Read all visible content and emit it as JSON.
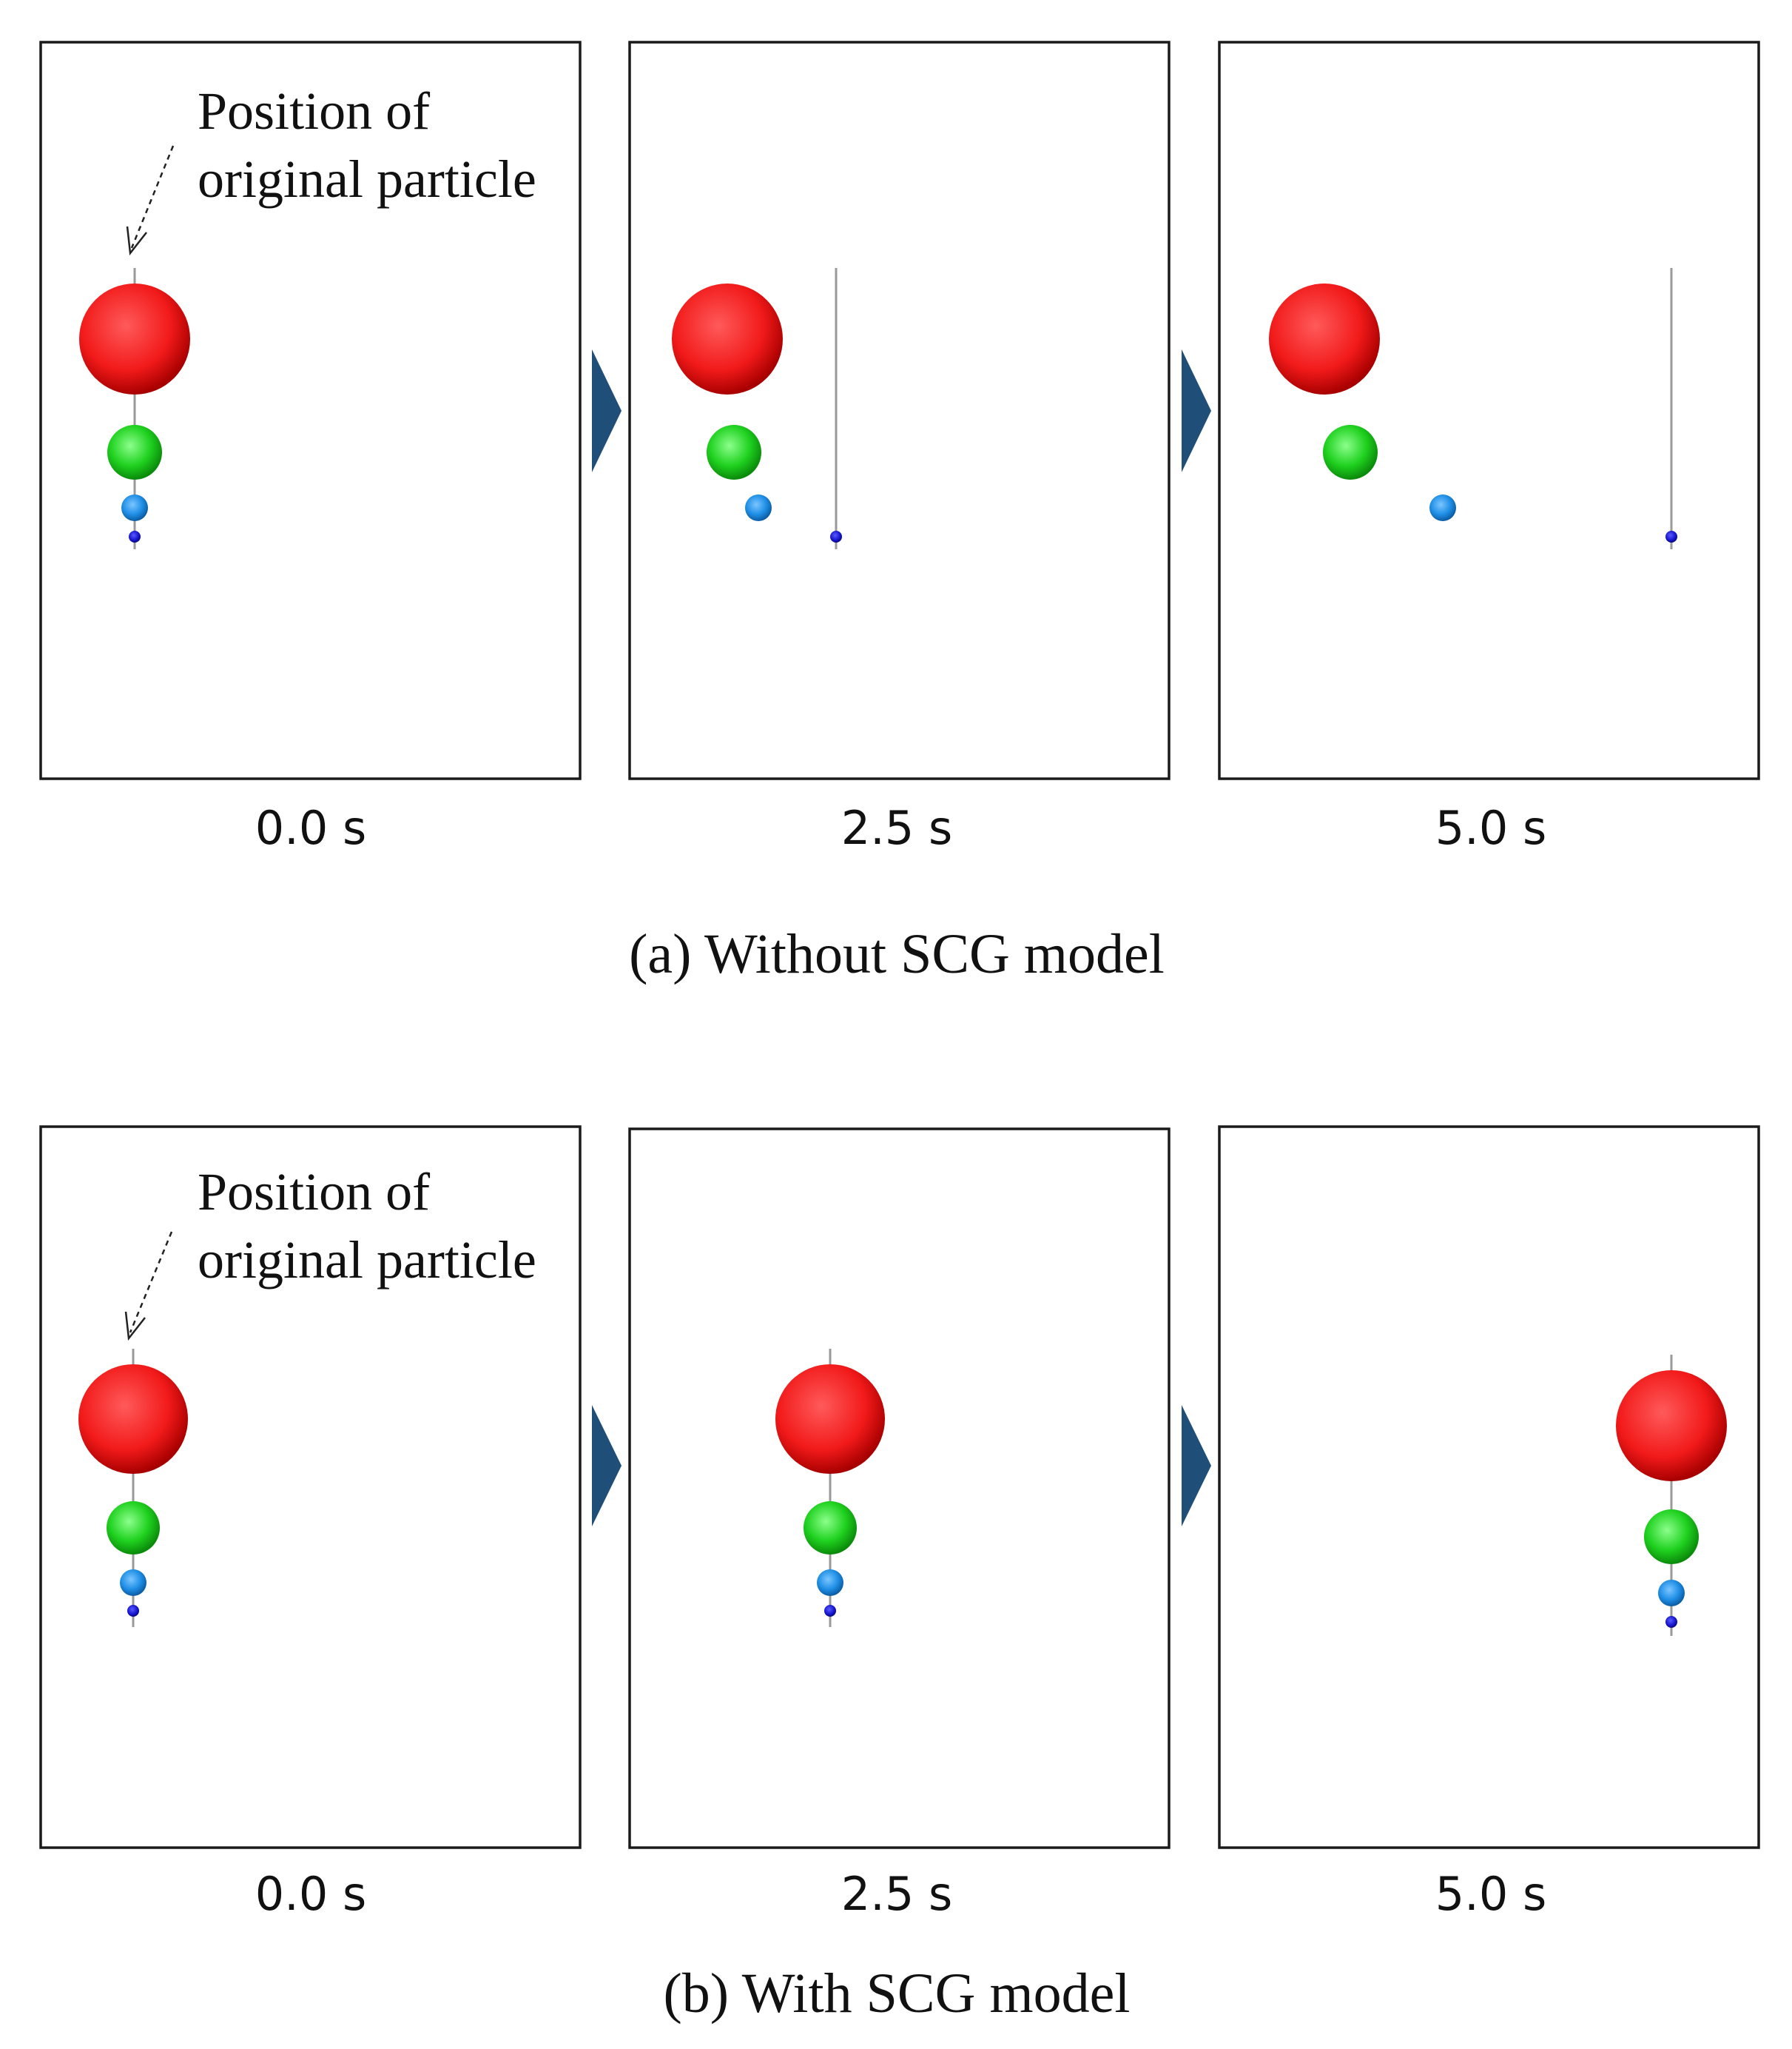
{
  "annotation": {
    "line1": "Position of",
    "line2": "original particle"
  },
  "colors": {
    "red": "#f21a1a",
    "green": "#1fd11f",
    "light_blue": "#1f8fe6",
    "dark_blue": "#1414cc",
    "arrow": "#1f4e79"
  },
  "rows": [
    {
      "caption": "(a) Without SCG model",
      "frames": [
        {
          "time": "0.0 s"
        },
        {
          "time": "2.5 s"
        },
        {
          "time": "5.0 s"
        }
      ]
    },
    {
      "caption": "(b) With SCG model",
      "frames": [
        {
          "time": "0.0 s"
        },
        {
          "time": "2.5 s"
        },
        {
          "time": "5.0 s"
        }
      ]
    }
  ]
}
